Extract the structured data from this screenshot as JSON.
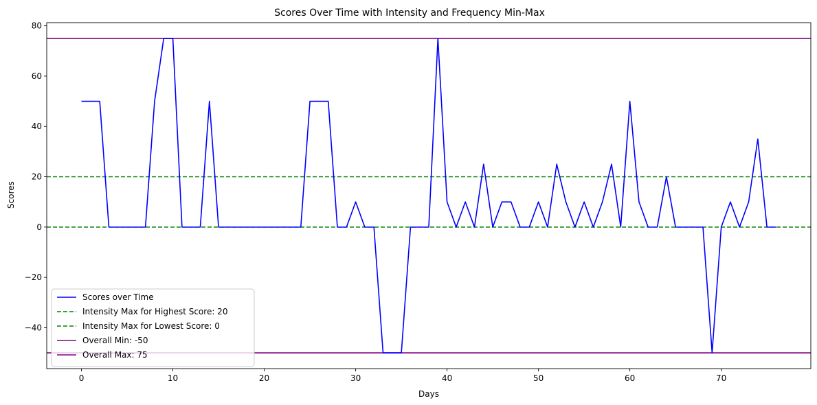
{
  "chart_data": {
    "type": "line",
    "title": "Scores Over Time with Intensity and Frequency Min-Max",
    "xlabel": "Days",
    "ylabel": "Scores",
    "xlim": [
      -3.8,
      79.8
    ],
    "ylim": [
      -56.25,
      81.25
    ],
    "x_ticks": [
      0,
      10,
      20,
      30,
      40,
      50,
      60,
      70
    ],
    "y_ticks": [
      -40,
      -20,
      0,
      20,
      40,
      60,
      80
    ],
    "y_tick_labels": [
      "−40",
      "−20",
      "0",
      "20",
      "40",
      "60",
      "80"
    ],
    "grid": false,
    "legend_position": "lower-left",
    "series": [
      {
        "name": "Scores over Time",
        "color": "#0000ff",
        "style": "solid",
        "x": [
          0,
          1,
          2,
          3,
          4,
          5,
          6,
          7,
          8,
          9,
          10,
          11,
          12,
          13,
          14,
          15,
          16,
          17,
          18,
          19,
          20,
          21,
          22,
          23,
          24,
          25,
          26,
          27,
          28,
          29,
          30,
          31,
          32,
          33,
          34,
          35,
          36,
          37,
          38,
          39,
          40,
          41,
          42,
          43,
          44,
          45,
          46,
          47,
          48,
          49,
          50,
          51,
          52,
          53,
          54,
          55,
          56,
          57,
          58,
          59,
          60,
          61,
          62,
          63,
          64,
          65,
          66,
          67,
          68,
          69,
          70,
          71,
          72,
          73,
          74,
          75,
          76
        ],
        "values": [
          50,
          50,
          50,
          0,
          0,
          0,
          0,
          0,
          50,
          75,
          75,
          0,
          0,
          0,
          50,
          0,
          0,
          0,
          0,
          0,
          0,
          0,
          0,
          0,
          0,
          50,
          50,
          50,
          0,
          0,
          10,
          0,
          0,
          -50,
          -50,
          -50,
          0,
          0,
          0,
          75,
          10,
          0,
          10,
          0,
          25,
          0,
          10,
          10,
          0,
          0,
          10,
          0,
          25,
          10,
          0,
          10,
          0,
          10,
          25,
          0,
          50,
          10,
          0,
          0,
          20,
          0,
          0,
          0,
          0,
          -50,
          0,
          10,
          0,
          10,
          35,
          0,
          0
        ]
      }
    ],
    "reference_lines": [
      {
        "name": "Intensity Max for Highest Score: 20",
        "value": 20,
        "color": "#008000",
        "style": "dashed"
      },
      {
        "name": "Intensity Max for Lowest Score: 0",
        "value": 0,
        "color": "#008000",
        "style": "dashed"
      },
      {
        "name": "Overall Min: -50",
        "value": -50,
        "color": "#800080",
        "style": "solid"
      },
      {
        "name": "Overall Max: 75",
        "value": 75,
        "color": "#800080",
        "style": "solid"
      }
    ]
  }
}
